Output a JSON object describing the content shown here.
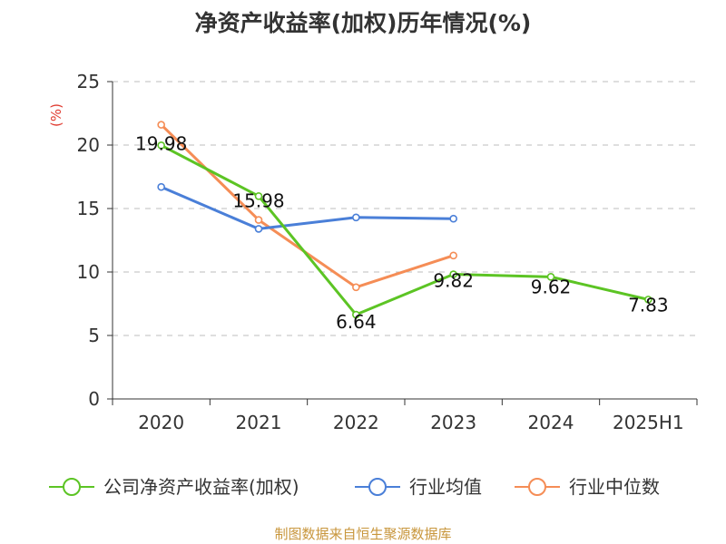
{
  "chart_data": {
    "type": "line",
    "title": "净资产收益率(加权)历年情况(%)",
    "ylabel": "(%)",
    "xlabel": "",
    "ylim": [
      0,
      25
    ],
    "yticks": [
      0,
      5,
      10,
      15,
      20,
      25
    ],
    "categories": [
      "2020",
      "2021",
      "2022",
      "2023",
      "2024",
      "2025H1"
    ],
    "grid": true,
    "legend_position": "bottom",
    "series": [
      {
        "name": "公司净资产收益率(加权)",
        "color": "#5cc424",
        "values": [
          19.98,
          15.98,
          6.64,
          9.82,
          9.62,
          7.83
        ],
        "data_labels": [
          "19.98",
          "15.98",
          "6.64",
          "9.82",
          "9.62",
          "7.83"
        ]
      },
      {
        "name": "行业均值",
        "color": "#4a7fd8",
        "values": [
          16.7,
          13.4,
          14.3,
          14.2,
          null,
          null
        ]
      },
      {
        "name": "行业中位数",
        "color": "#f58d56",
        "values": [
          21.6,
          14.1,
          8.8,
          11.3,
          null,
          null
        ]
      }
    ]
  },
  "source": "制图数据来自恒生聚源数据库"
}
